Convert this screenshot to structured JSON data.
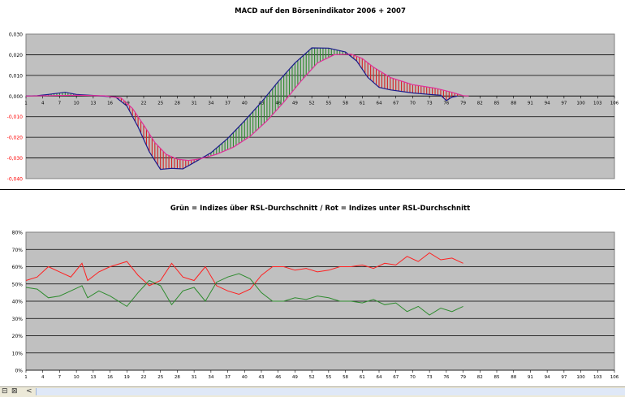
{
  "chart_data": [
    {
      "type": "area",
      "title": "MACD auf den Börsenindikator 2006 + 2007",
      "x_ticks": [
        "1",
        "4",
        "7",
        "10",
        "13",
        "16",
        "19",
        "22",
        "25",
        "28",
        "31",
        "34",
        "37",
        "40",
        "43",
        "46",
        "49",
        "52",
        "55",
        "58",
        "61",
        "64",
        "67",
        "70",
        "73",
        "76",
        "79",
        "82",
        "85",
        "88",
        "91",
        "94",
        "97",
        "100",
        "103",
        "106"
      ],
      "y_ticks": [
        "0,030",
        "0,020",
        "0,010",
        "0,000",
        "-0,010",
        "-0,020",
        "-0,030",
        "-0,040"
      ],
      "ylim": [
        -0.04,
        0.03
      ],
      "xlim": [
        1,
        106
      ],
      "grid": true,
      "fill_colors": {
        "positive": "#2e8b2e",
        "negative": "#d42020"
      },
      "series": [
        {
          "color": "#1a1a8c",
          "values": [
            [
              1,
              0
            ],
            [
              3,
              0.0002
            ],
            [
              5,
              0.0008
            ],
            [
              8,
              0.0018
            ],
            [
              10,
              0.0008
            ],
            [
              14,
              0.0001
            ],
            [
              17,
              -0.0005
            ],
            [
              19,
              -0.0048
            ],
            [
              21,
              -0.015
            ],
            [
              23,
              -0.027
            ],
            [
              25,
              -0.0355
            ],
            [
              27,
              -0.035
            ],
            [
              29,
              -0.0353
            ],
            [
              31,
              -0.0322
            ],
            [
              34,
              -0.0275
            ],
            [
              37,
              -0.0205
            ],
            [
              40,
              -0.012
            ],
            [
              43,
              -0.003
            ],
            [
              46,
              0.007
            ],
            [
              49,
              0.016
            ],
            [
              52,
              0.0233
            ],
            [
              55,
              0.0232
            ],
            [
              58,
              0.0213
            ],
            [
              60,
              0.017
            ],
            [
              62,
              0.009
            ],
            [
              64,
              0.0042
            ],
            [
              66,
              0.003
            ],
            [
              70,
              0.0015
            ],
            [
              73,
              0.0008
            ],
            [
              75,
              0.0004
            ],
            [
              76,
              -0.0022
            ],
            [
              77,
              -0.0005
            ],
            [
              78,
              0
            ]
          ]
        },
        {
          "color": "#e0309a",
          "values": [
            [
              1,
              0
            ],
            [
              5,
              0.0002
            ],
            [
              10,
              0.0004
            ],
            [
              15,
              0.0001
            ],
            [
              18,
              -0.001
            ],
            [
              20,
              -0.006
            ],
            [
              22,
              -0.014
            ],
            [
              24,
              -0.0225
            ],
            [
              26,
              -0.0282
            ],
            [
              28,
              -0.0306
            ],
            [
              30,
              -0.0312
            ],
            [
              32,
              -0.0305
            ],
            [
              35,
              -0.0282
            ],
            [
              38,
              -0.0248
            ],
            [
              41,
              -0.0195
            ],
            [
              44,
              -0.012
            ],
            [
              47,
              -0.003
            ],
            [
              50,
              0.007
            ],
            [
              53,
              0.016
            ],
            [
              56,
              0.02
            ],
            [
              59,
              0.0203
            ],
            [
              61,
              0.0182
            ],
            [
              63,
              0.014
            ],
            [
              66,
              0.009
            ],
            [
              70,
              0.0055
            ],
            [
              74,
              0.0038
            ],
            [
              77,
              0.0018
            ],
            [
              79,
              0.0002
            ],
            [
              80,
              0
            ]
          ]
        }
      ]
    },
    {
      "type": "line",
      "title": "Grün = Indizes über RSL-Durchschnitt / Rot = Indizes unter RSL-Durchschnitt",
      "x_ticks": [
        "1",
        "4",
        "7",
        "10",
        "13",
        "16",
        "19",
        "22",
        "25",
        "28",
        "31",
        "34",
        "37",
        "40",
        "43",
        "46",
        "49",
        "52",
        "55",
        "58",
        "61",
        "64",
        "67",
        "70",
        "73",
        "76",
        "79",
        "82",
        "85",
        "88",
        "91",
        "94",
        "97",
        "100",
        "103",
        "106"
      ],
      "y_ticks": [
        "80%",
        "70%",
        "60%",
        "50%",
        "40%",
        "30%",
        "20%",
        "10%",
        "0%"
      ],
      "ylim": [
        0,
        80
      ],
      "xlim": [
        1,
        106
      ],
      "grid": true,
      "series": [
        {
          "color": "#ff2020",
          "values": [
            [
              1,
              52
            ],
            [
              3,
              54
            ],
            [
              5,
              60
            ],
            [
              7,
              57
            ],
            [
              9,
              54
            ],
            [
              11,
              62
            ],
            [
              12,
              52
            ],
            [
              14,
              57
            ],
            [
              16,
              60
            ],
            [
              19,
              63
            ],
            [
              21,
              55
            ],
            [
              23,
              49
            ],
            [
              25,
              52
            ],
            [
              27,
              62
            ],
            [
              29,
              54
            ],
            [
              31,
              52
            ],
            [
              33,
              60
            ],
            [
              35,
              49
            ],
            [
              37,
              46
            ],
            [
              39,
              44
            ],
            [
              41,
              47
            ],
            [
              43,
              55
            ],
            [
              45,
              60
            ],
            [
              47,
              60
            ],
            [
              49,
              58
            ],
            [
              51,
              59
            ],
            [
              53,
              57
            ],
            [
              55,
              58
            ],
            [
              57,
              60
            ],
            [
              59,
              60
            ],
            [
              61,
              61
            ],
            [
              63,
              59
            ],
            [
              65,
              62
            ],
            [
              67,
              61
            ],
            [
              69,
              66
            ],
            [
              71,
              63
            ],
            [
              73,
              68
            ],
            [
              75,
              64
            ],
            [
              77,
              65
            ],
            [
              79,
              62
            ]
          ]
        },
        {
          "color": "#2e8b2e",
          "values": [
            [
              1,
              48
            ],
            [
              3,
              47
            ],
            [
              5,
              42
            ],
            [
              7,
              43
            ],
            [
              9,
              46
            ],
            [
              11,
              49
            ],
            [
              12,
              42
            ],
            [
              14,
              46
            ],
            [
              16,
              43
            ],
            [
              19,
              37
            ],
            [
              21,
              45
            ],
            [
              23,
              52
            ],
            [
              25,
              49
            ],
            [
              27,
              38
            ],
            [
              29,
              46
            ],
            [
              31,
              48
            ],
            [
              33,
              40
            ],
            [
              35,
              51
            ],
            [
              37,
              54
            ],
            [
              39,
              56
            ],
            [
              41,
              53
            ],
            [
              43,
              45
            ],
            [
              45,
              40
            ],
            [
              47,
              40
            ],
            [
              49,
              42
            ],
            [
              51,
              41
            ],
            [
              53,
              43
            ],
            [
              55,
              42
            ],
            [
              57,
              40
            ],
            [
              59,
              40
            ],
            [
              61,
              39
            ],
            [
              63,
              41
            ],
            [
              65,
              38
            ],
            [
              67,
              39
            ],
            [
              69,
              34
            ],
            [
              71,
              37
            ],
            [
              73,
              32
            ],
            [
              75,
              36
            ],
            [
              77,
              34
            ],
            [
              79,
              37
            ]
          ]
        }
      ]
    }
  ],
  "statusbar": {
    "icon1": "⊟",
    "icon2": "⊠",
    "icon3": "<"
  }
}
